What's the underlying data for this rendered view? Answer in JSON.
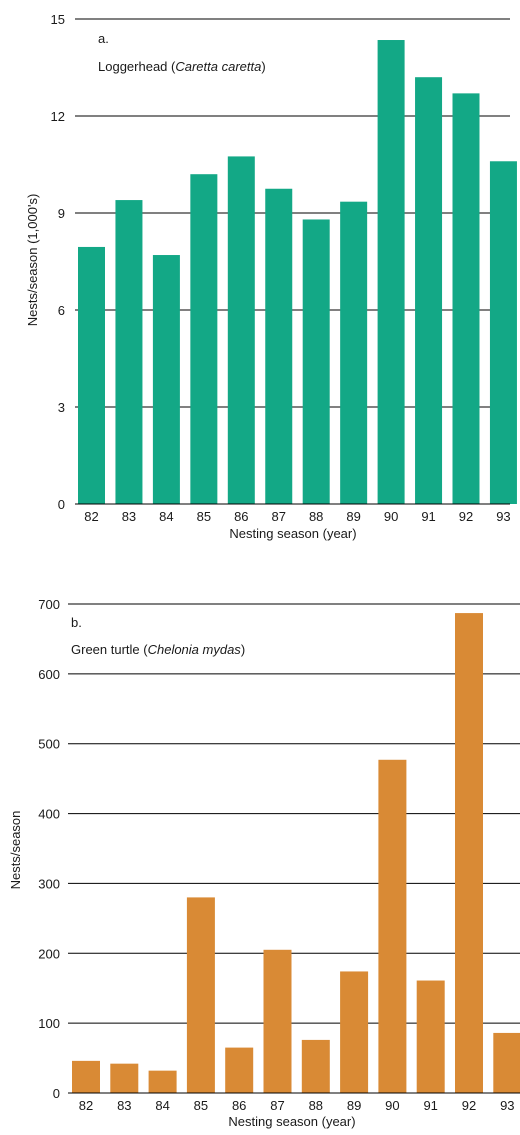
{
  "chart_data": [
    {
      "type": "bar",
      "panel_label": "a.",
      "title_prefix": "Loggerhead (",
      "title_italic": "Caretta caretta",
      "title_suffix": ")",
      "xlabel": "Nesting season (year)",
      "ylabel": "Nests/season (1,000's)",
      "categories": [
        "82",
        "83",
        "84",
        "85",
        "86",
        "87",
        "88",
        "89",
        "90",
        "91",
        "92",
        "93"
      ],
      "values": [
        7.95,
        9.4,
        7.7,
        10.2,
        10.75,
        9.75,
        8.8,
        9.35,
        14.35,
        13.2,
        12.7,
        10.6
      ],
      "ylim": [
        0,
        15
      ],
      "yticks": [
        0,
        3,
        6,
        9,
        12,
        15
      ],
      "grid": true,
      "color": "#13a886"
    },
    {
      "type": "bar",
      "panel_label": "b.",
      "title_prefix": "Green turtle (",
      "title_italic": "Chelonia mydas",
      "title_suffix": ")",
      "xlabel": "Nesting season (year)",
      "ylabel": "Nests/season",
      "categories": [
        "82",
        "83",
        "84",
        "85",
        "86",
        "87",
        "88",
        "89",
        "90",
        "91",
        "92",
        "93"
      ],
      "values": [
        46,
        42,
        32,
        280,
        65,
        205,
        76,
        174,
        477,
        161,
        687,
        86
      ],
      "ylim": [
        0,
        700
      ],
      "yticks": [
        0,
        100,
        200,
        300,
        400,
        500,
        600,
        700
      ],
      "grid": true,
      "color": "#d98a35"
    }
  ]
}
